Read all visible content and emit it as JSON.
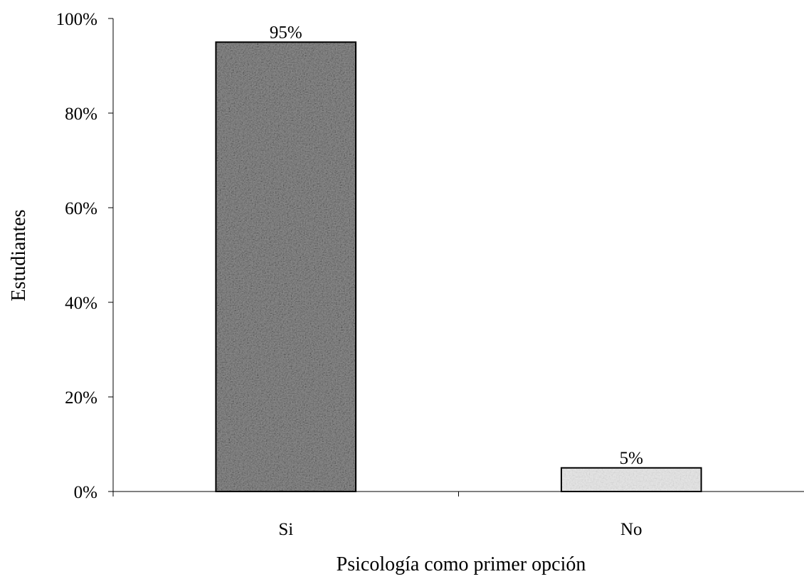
{
  "chart_data": {
    "type": "bar",
    "title": "",
    "xlabel": "Psicología como primer opción",
    "ylabel": "Estudiantes",
    "categories": [
      "Si",
      "No"
    ],
    "values": [
      95,
      5
    ],
    "data_labels": [
      "95%",
      "5%"
    ],
    "ylim": [
      0,
      100
    ],
    "yticks": [
      0,
      20,
      40,
      60,
      80,
      100
    ],
    "ytick_labels": [
      "0%",
      "20%",
      "40%",
      "60%",
      "80%",
      "100%"
    ],
    "grid": false,
    "legend": "none",
    "colors": {
      "bar_fills": [
        "#8a8a8a",
        "#e6e6e6"
      ],
      "bar_stroke": "#000000",
      "axis": "#000000"
    }
  }
}
